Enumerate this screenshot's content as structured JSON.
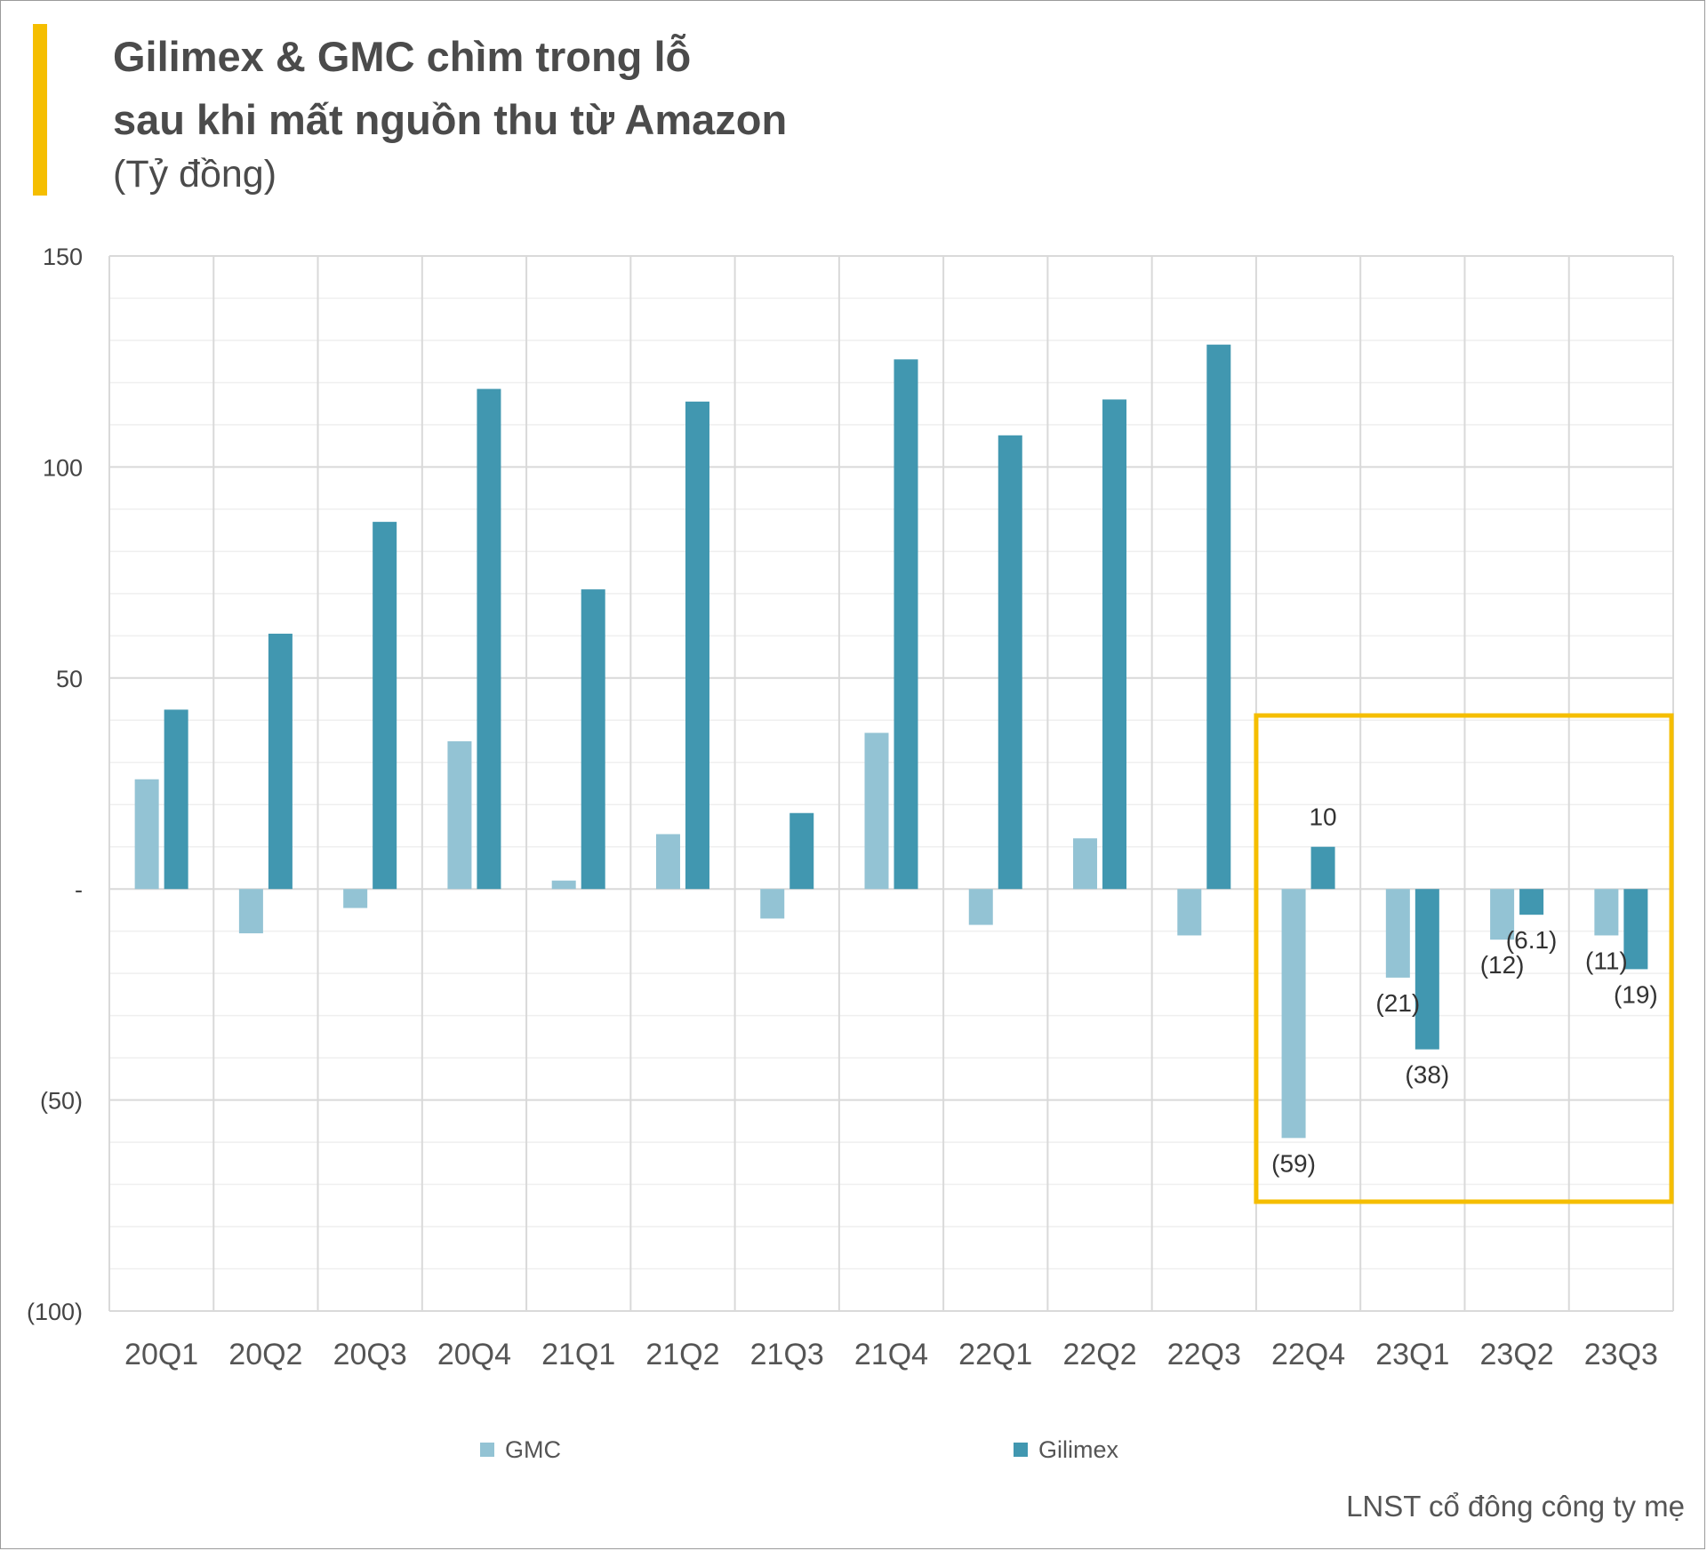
{
  "header": {
    "title_line1": "Gilimex & GMC chìm trong lỗ",
    "title_line2": "sau khi mất nguồn thu từ Amazon",
    "subtitle": "(Tỷ đồng)"
  },
  "footnote": "LNST cổ đông công ty mẹ",
  "colors": {
    "accent": "#F5BE00",
    "gmc": "#93C3D4",
    "gilimex": "#4197B0",
    "grid": "#d9d9d9",
    "highlight_box": "#F5BE00"
  },
  "chart_data": {
    "type": "bar",
    "categories": [
      "20Q1",
      "20Q2",
      "20Q3",
      "20Q4",
      "21Q1",
      "21Q2",
      "21Q3",
      "21Q4",
      "22Q1",
      "22Q2",
      "22Q3",
      "22Q4",
      "23Q1",
      "23Q2",
      "23Q3"
    ],
    "series": [
      {
        "name": "GMC",
        "values": [
          26,
          -10.5,
          -4.5,
          35,
          2,
          13,
          -7,
          37,
          -8.5,
          12,
          -11,
          -59,
          -21,
          -12,
          -11
        ]
      },
      {
        "name": "Gilimex",
        "values": [
          42.5,
          60.5,
          87,
          118.5,
          71,
          115.5,
          18,
          125.5,
          107.5,
          116,
          129,
          10,
          -38,
          -6.1,
          -19
        ]
      }
    ],
    "ylim": [
      -100,
      150
    ],
    "y_ticks": [
      {
        "value": 150,
        "label": "150"
      },
      {
        "value": 100,
        "label": "100"
      },
      {
        "value": 50,
        "label": "50"
      },
      {
        "value": 0,
        "label": "-"
      },
      {
        "value": -50,
        "label": "(50)"
      },
      {
        "value": -100,
        "label": "(100)"
      }
    ],
    "data_labels": [
      {
        "category": "22Q4",
        "series": "GMC",
        "text": "(59)"
      },
      {
        "category": "22Q4",
        "series": "Gilimex",
        "text": "10"
      },
      {
        "category": "23Q1",
        "series": "GMC",
        "text": "(21)"
      },
      {
        "category": "23Q1",
        "series": "Gilimex",
        "text": "(38)"
      },
      {
        "category": "23Q2",
        "series": "GMC",
        "text": "(12)"
      },
      {
        "category": "23Q2",
        "series": "Gilimex",
        "text": "(6.1)"
      },
      {
        "category": "23Q3",
        "series": "GMC",
        "text": "(11)"
      },
      {
        "category": "23Q3",
        "series": "Gilimex",
        "text": "(19)"
      }
    ],
    "highlight": {
      "from_category": "22Q4",
      "to_category": "23Q3"
    },
    "grid": true,
    "legend_position": "bottom"
  }
}
